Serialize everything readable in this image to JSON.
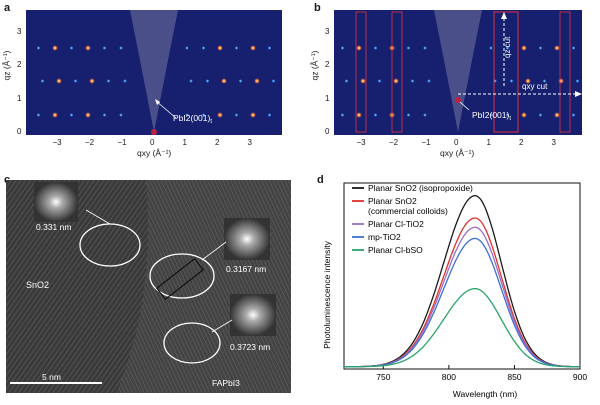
{
  "panels": {
    "a": {
      "letter": "a",
      "annotation": "PbI2(001)",
      "annotation_sub": "t",
      "ylabel": "qz (Å⁻¹)",
      "xlabel": "qxy (Å⁻¹)",
      "xticks": [
        "−3",
        "−2",
        "−1",
        "0",
        "1",
        "2",
        "3"
      ],
      "yticks": [
        "0",
        "1",
        "2",
        "3"
      ]
    },
    "b": {
      "letter": "b",
      "annotation": "PbI2(001)",
      "annotation_sub": "t",
      "ylabel": "qz (Å⁻¹)",
      "xlabel": "qxy (Å⁻¹)",
      "qz_cut": "qz cut",
      "qxy_cut": "qxy cut",
      "xticks": [
        "−3",
        "−2",
        "−1",
        "0",
        "1",
        "2",
        "3"
      ],
      "yticks": [
        "0",
        "1",
        "2",
        "3"
      ]
    },
    "c": {
      "letter": "c",
      "labels": {
        "sno2": "SnO2",
        "fapbi3": "FAPbI3",
        "d1": "0.331 nm",
        "d2": "0.3167 nm",
        "d3": "0.3723 nm",
        "scale": "5 nm"
      }
    },
    "d": {
      "letter": "d"
    }
  },
  "chart_data": {
    "type": "line",
    "title": "",
    "xlabel": "Wavelength (nm)",
    "ylabel": "Photoluminescence intensity",
    "xlim": [
      720,
      900
    ],
    "xticks": [
      750,
      800,
      850,
      900
    ],
    "ylim": [
      0,
      1
    ],
    "legend_position": "top-left",
    "peak_center": 820,
    "series": [
      {
        "name": "Planar SnO2 (isopropoxide)",
        "color": "#1a1a1a",
        "peak": 0.92
      },
      {
        "name": "Planar SnO2 (commercial colloids)",
        "color": "#e0322b",
        "peak": 0.8
      },
      {
        "name": "Planar Cl-TiO2",
        "color": "#9a6fc9",
        "peak": 0.75
      },
      {
        "name": "mp-TiO2",
        "color": "#3b6fd1",
        "peak": 0.69
      },
      {
        "name": "Planar Cl-bSO",
        "color": "#2aa36a",
        "peak": 0.42
      }
    ]
  }
}
